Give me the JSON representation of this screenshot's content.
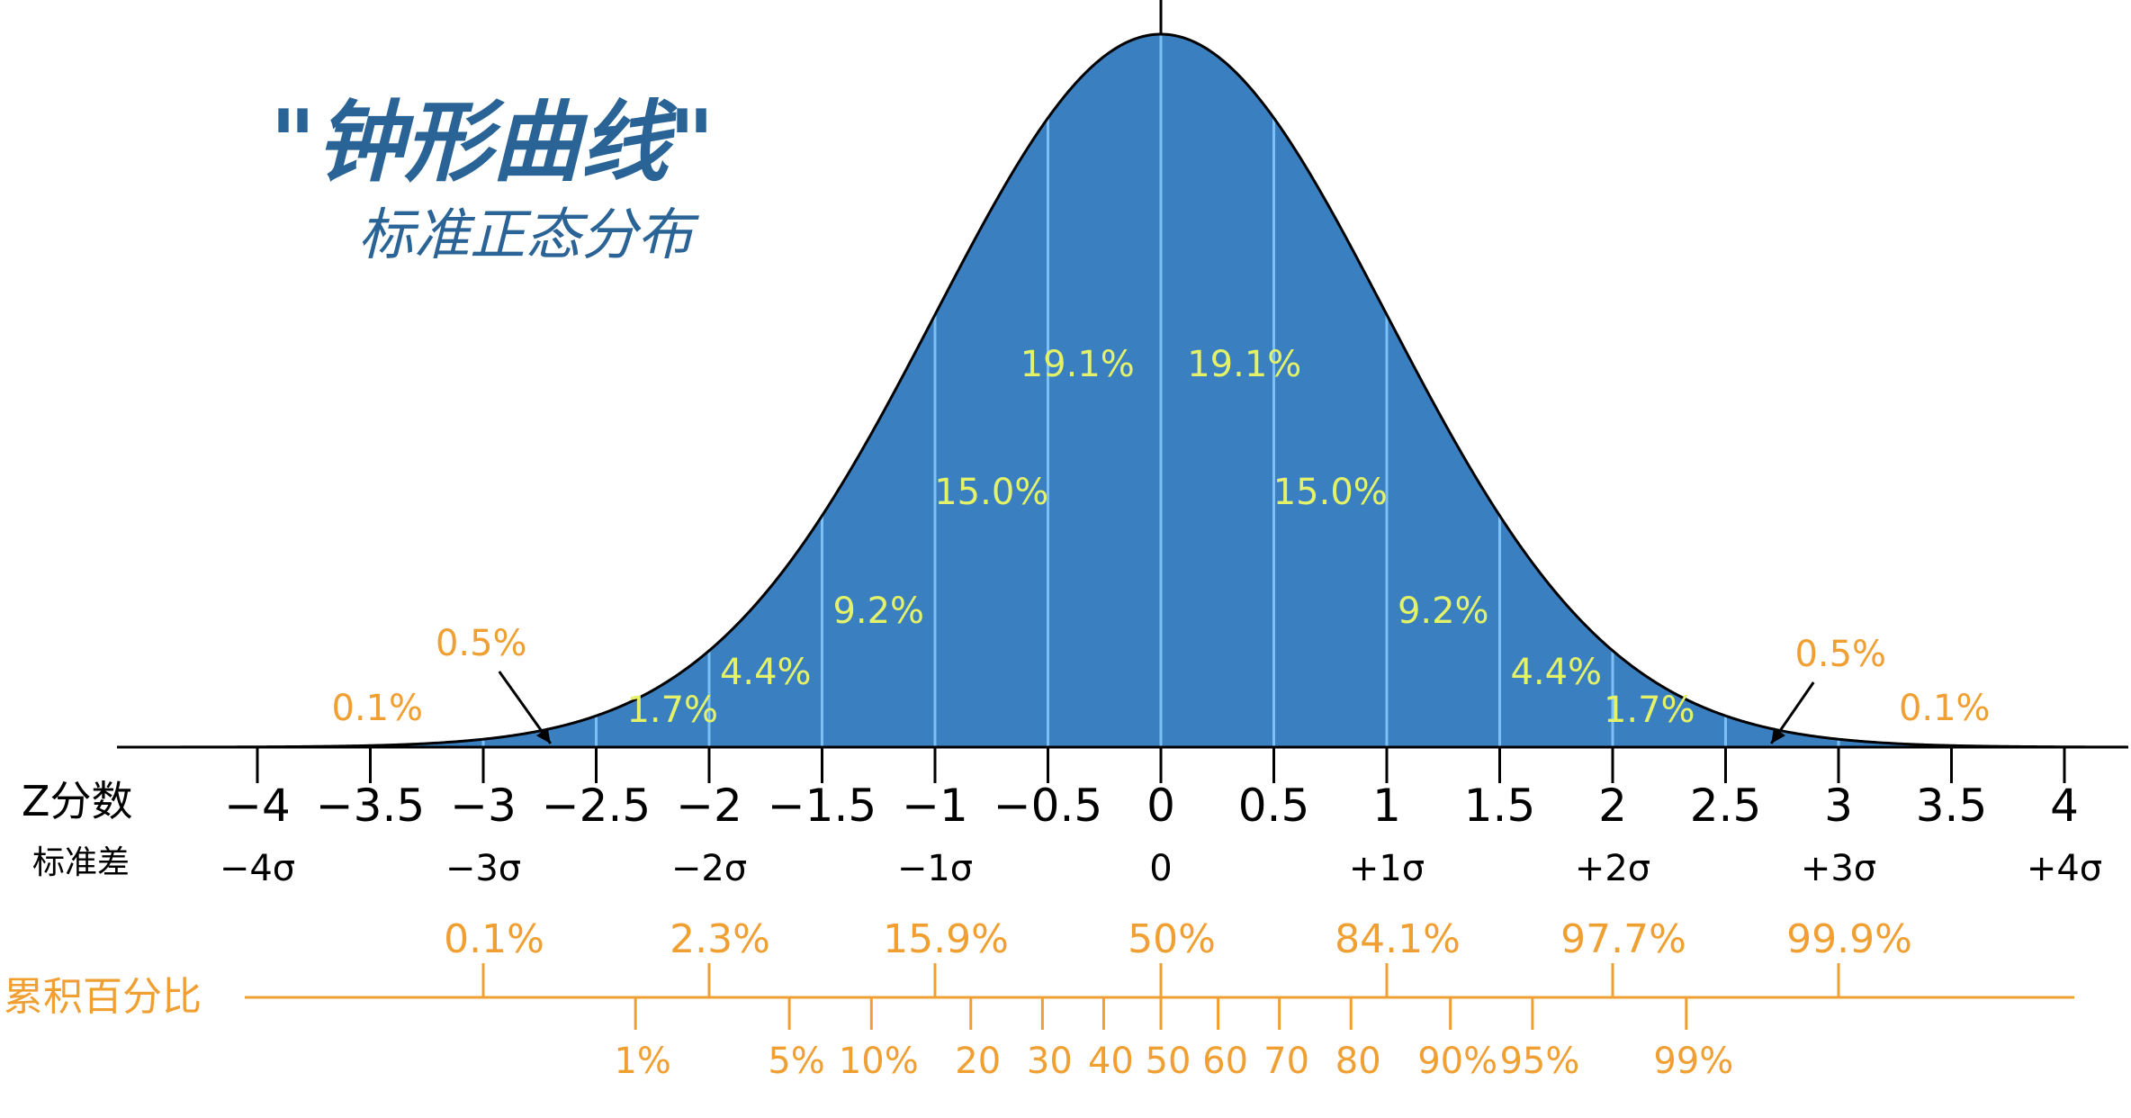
{
  "title": "\"钟形曲线\"",
  "subtitle": "标准正态分布",
  "axis_labels": {
    "z": "Z分数",
    "sd": "标准差",
    "cumulative": "累积百分比"
  },
  "colors": {
    "fill": "#3a80c1",
    "divider": "#7cc0f5",
    "segment_text": "#e4f26a",
    "orange": "#f0a033",
    "title": "#2a6496"
  },
  "chart_data": {
    "type": "area",
    "distribution": "standard normal",
    "xlim": [
      -4,
      4
    ],
    "z_ticks": [
      {
        "value": -4,
        "label": "−4"
      },
      {
        "value": -3.5,
        "label": "−3.5"
      },
      {
        "value": -3,
        "label": "−3"
      },
      {
        "value": -2.5,
        "label": "−2.5"
      },
      {
        "value": -2,
        "label": "−2"
      },
      {
        "value": -1.5,
        "label": "−1.5"
      },
      {
        "value": -1,
        "label": "−1"
      },
      {
        "value": -0.5,
        "label": "−0.5"
      },
      {
        "value": 0,
        "label": "0"
      },
      {
        "value": 0.5,
        "label": "0.5"
      },
      {
        "value": 1,
        "label": "1"
      },
      {
        "value": 1.5,
        "label": "1.5"
      },
      {
        "value": 2,
        "label": "2"
      },
      {
        "value": 2.5,
        "label": "2.5"
      },
      {
        "value": 3,
        "label": "3"
      },
      {
        "value": 3.5,
        "label": "3.5"
      },
      {
        "value": 4,
        "label": "4"
      }
    ],
    "sd_ticks": [
      {
        "value": -4,
        "label": "−4σ"
      },
      {
        "value": -3,
        "label": "−3σ"
      },
      {
        "value": -2,
        "label": "−2σ"
      },
      {
        "value": -1,
        "label": "−1σ"
      },
      {
        "value": 0,
        "label": "0"
      },
      {
        "value": 1,
        "label": "+1σ"
      },
      {
        "value": 2,
        "label": "+2σ"
      },
      {
        "value": 3,
        "label": "+3σ"
      },
      {
        "value": 4,
        "label": "+4σ"
      }
    ],
    "segments": [
      {
        "from": -0.5,
        "to": 0,
        "label": "19.1%"
      },
      {
        "from": 0,
        "to": 0.5,
        "label": "19.1%"
      },
      {
        "from": -1,
        "to": -0.5,
        "label": "15.0%"
      },
      {
        "from": 0.5,
        "to": 1,
        "label": "15.0%"
      },
      {
        "from": -1.5,
        "to": -1,
        "label": "9.2%"
      },
      {
        "from": 1,
        "to": 1.5,
        "label": "9.2%"
      },
      {
        "from": -2,
        "to": -1.5,
        "label": "4.4%"
      },
      {
        "from": 1.5,
        "to": 2,
        "label": "4.4%"
      },
      {
        "from": -2.5,
        "to": -2,
        "label": "1.7%"
      },
      {
        "from": 2,
        "to": 2.5,
        "label": "1.7%"
      }
    ],
    "tail_segments": [
      {
        "from": -3,
        "to": -2.5,
        "label": "0.5%"
      },
      {
        "from": 2.5,
        "to": 3,
        "label": "0.5%"
      },
      {
        "from": -3.5,
        "to": -3,
        "label": "0.1%"
      },
      {
        "from": 3,
        "to": 3.5,
        "label": "0.1%"
      }
    ],
    "cumulative_major": [
      {
        "z": -3,
        "label": "0.1%"
      },
      {
        "z": -2,
        "label": "2.3%"
      },
      {
        "z": -1,
        "label": "15.9%"
      },
      {
        "z": 0,
        "label": "50%"
      },
      {
        "z": 1,
        "label": "84.1%"
      },
      {
        "z": 2,
        "label": "97.7%"
      },
      {
        "z": 3,
        "label": "99.9%"
      }
    ],
    "cumulative_minor": [
      {
        "z": -2.326,
        "label": "1%"
      },
      {
        "z": -1.645,
        "label": "5%"
      },
      {
        "z": -1.2816,
        "label": "10%"
      },
      {
        "z": -0.8416,
        "label": "20"
      },
      {
        "z": -0.5244,
        "label": "30"
      },
      {
        "z": -0.2533,
        "label": "40"
      },
      {
        "z": 0,
        "label": "50"
      },
      {
        "z": 0.2533,
        "label": "60"
      },
      {
        "z": 0.5244,
        "label": "70"
      },
      {
        "z": 0.8416,
        "label": "80"
      },
      {
        "z": 1.2816,
        "label": "90%"
      },
      {
        "z": 1.645,
        "label": "95%"
      },
      {
        "z": 2.326,
        "label": "99%"
      }
    ]
  }
}
